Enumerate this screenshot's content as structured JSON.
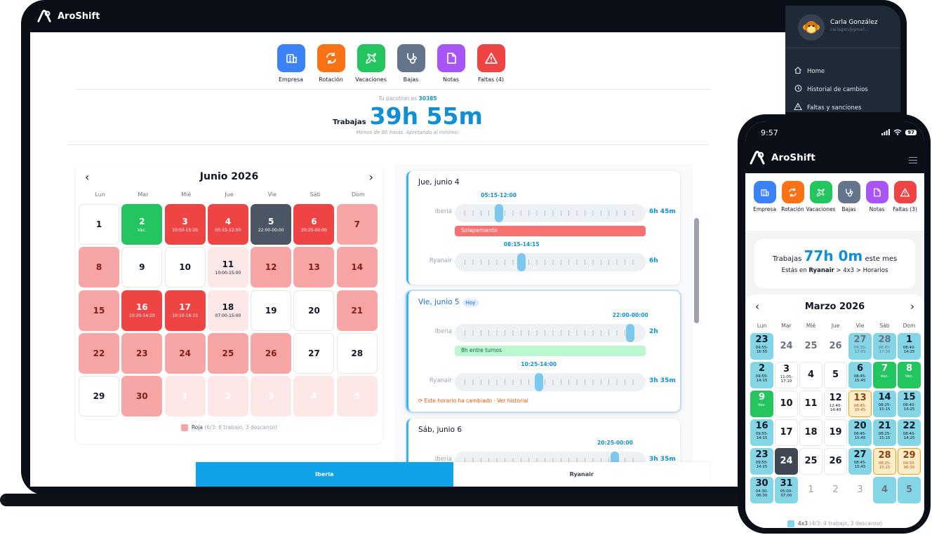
{
  "app": {
    "name": "AroShift"
  },
  "colors": {
    "blue": "#3b82f6",
    "orange": "#f97316",
    "green": "#22c55e",
    "slate": "#64748b",
    "purple": "#a855f7",
    "red": "#ef4444",
    "accent": "#0e8fd8"
  },
  "user": {
    "name": "Carla González",
    "email": "carlagon@gmail..."
  },
  "menu": {
    "items": [
      {
        "label": "Home",
        "icon": "home-icon"
      },
      {
        "label": "Historial de cambios",
        "icon": "history-icon"
      },
      {
        "label": "Faltas y sanciones",
        "icon": "warning-icon"
      }
    ]
  },
  "toolbar": {
    "items": [
      {
        "label": "Empresa",
        "icon": "building-icon",
        "color": "#3b82f6"
      },
      {
        "label": "Rotación",
        "icon": "rotate-icon",
        "color": "#f97316"
      },
      {
        "label": "Vacaciones",
        "icon": "plane-icon",
        "color": "#22c55e"
      },
      {
        "label": "Bajas",
        "icon": "stethoscope-icon",
        "color": "#64748b"
      },
      {
        "label": "Notas",
        "icon": "note-icon",
        "color": "#a855f7"
      },
      {
        "label": "Faltas (4)",
        "icon": "alert-icon",
        "color": "#ef4444"
      }
    ]
  },
  "summary": {
    "pacotron_text": "Tu pacotron es ",
    "pacotron_value": "30385",
    "worked_label": "Trabajas",
    "worked_hours": "39h 55m",
    "note": "Menos de 90 horas. Apretando al mínimo."
  },
  "calendar": {
    "title": "Junio 2026",
    "weekdays": [
      "Lun",
      "Mar",
      "Mié",
      "Jue",
      "Vie",
      "Sáb",
      "Dom"
    ],
    "days": [
      {
        "d": "1",
        "t": "w",
        "s": ""
      },
      {
        "d": "2",
        "t": "g",
        "s": "Vac."
      },
      {
        "d": "3",
        "t": "r",
        "s": "10:50-15:20"
      },
      {
        "d": "4",
        "t": "r",
        "s": "05:15-12:00"
      },
      {
        "d": "5",
        "t": "d",
        "s": "22:00-00:00"
      },
      {
        "d": "6",
        "t": "r",
        "s": "20:25-00:00"
      },
      {
        "d": "7",
        "t": "p",
        "s": ""
      },
      {
        "d": "8",
        "t": "p",
        "s": ""
      },
      {
        "d": "9",
        "t": "w",
        "s": ""
      },
      {
        "d": "10",
        "t": "w",
        "s": ""
      },
      {
        "d": "11",
        "t": "l",
        "s": "10:00-15:00"
      },
      {
        "d": "12",
        "t": "p",
        "s": ""
      },
      {
        "d": "13",
        "t": "p",
        "s": ""
      },
      {
        "d": "14",
        "t": "p",
        "s": ""
      },
      {
        "d": "15",
        "t": "p",
        "s": ""
      },
      {
        "d": "16",
        "t": "r",
        "s": "10:20-14:20"
      },
      {
        "d": "17",
        "t": "r",
        "s": "10:10-16:15"
      },
      {
        "d": "18",
        "t": "l",
        "s": "07:00-15:00"
      },
      {
        "d": "19",
        "t": "w",
        "s": ""
      },
      {
        "d": "20",
        "t": "w",
        "s": ""
      },
      {
        "d": "21",
        "t": "p",
        "s": ""
      },
      {
        "d": "22",
        "t": "p",
        "s": ""
      },
      {
        "d": "23",
        "t": "p",
        "s": ""
      },
      {
        "d": "24",
        "t": "p",
        "s": ""
      },
      {
        "d": "25",
        "t": "p",
        "s": ""
      },
      {
        "d": "26",
        "t": "p",
        "s": ""
      },
      {
        "d": "27",
        "t": "w",
        "s": ""
      },
      {
        "d": "28",
        "t": "w",
        "s": ""
      },
      {
        "d": "29",
        "t": "w",
        "s": ""
      },
      {
        "d": "30",
        "t": "p",
        "s": ""
      },
      {
        "d": "1",
        "t": "f",
        "s": ""
      },
      {
        "d": "2",
        "t": "f",
        "s": ""
      },
      {
        "d": "3",
        "t": "f",
        "s": ""
      },
      {
        "d": "4",
        "t": "f",
        "s": ""
      },
      {
        "d": "5",
        "t": "f",
        "s": ""
      }
    ],
    "legend": {
      "label": "Roja",
      "detail": "(6/3: 6 trabajo, 3 descanso)"
    }
  },
  "schedule": {
    "cards": [
      {
        "date": "Jue, junio 4",
        "today": "",
        "rows": [
          {
            "company": "Iberia",
            "time": "05:15-12:00",
            "total": "6h 45m",
            "pos": 0.23
          },
          {
            "company": "Ryanair",
            "time": "08:15-14:15",
            "total": "6h",
            "pos": 0.35
          }
        ],
        "note": "Solapamiento",
        "change": ""
      },
      {
        "date": "Vie, junio 5",
        "today": "Hoy",
        "rows": [
          {
            "company": "Iberia",
            "time": "22:00-00:00",
            "total": "2h",
            "pos": 0.92
          },
          {
            "company": "Ryanair",
            "time": "10:25-14:00",
            "total": "3h 35m",
            "pos": 0.44
          }
        ],
        "note": "8h entre turnos",
        "change": "Este horario ha cambiado · Ver historial"
      },
      {
        "date": "Sáb, junio 6",
        "today": "",
        "rows": [
          {
            "company": "Iberia",
            "time": "20:25-00:00",
            "total": "3h 35m",
            "pos": 0.84
          }
        ],
        "note": "",
        "change": ""
      }
    ]
  },
  "tabs": [
    {
      "label": "Iberia"
    },
    {
      "label": "Ryanair"
    }
  ],
  "phone": {
    "status": {
      "time": "9:57",
      "battery": "97"
    },
    "toolbar": [
      "Empresa",
      "Rotación",
      "Vacaciones",
      "Bajas",
      "Notas",
      "Faltas (3)"
    ],
    "summary": {
      "worked_label": "Trabajas",
      "worked_hours": "77h 0m",
      "suffix": "este mes",
      "path_prefix": "Estás en ",
      "path_company": "Ryanair",
      "path_rest": " > 4x3 > Horarios"
    },
    "calendar": {
      "title": "Marzo 2026",
      "weekdays": [
        "Lun",
        "Mar",
        "Mié",
        "Jue",
        "Vie",
        "Sáb",
        "Dom"
      ],
      "days": [
        {
          "d": "23",
          "t": "c",
          "s": "09:55-\n16:55"
        },
        {
          "d": "24",
          "t": "n",
          "s": ""
        },
        {
          "d": "25",
          "t": "n",
          "s": ""
        },
        {
          "d": "26",
          "t": "n",
          "s": ""
        },
        {
          "d": "27",
          "t": "cd",
          "s": "09:35-\n17:05"
        },
        {
          "d": "28",
          "t": "cd",
          "s": "08:45-\n17:30"
        },
        {
          "d": "1",
          "t": "c",
          "s": "08:40-\n14:25"
        },
        {
          "d": "2",
          "t": "c",
          "s": "09:55-\n14:15"
        },
        {
          "d": "3",
          "t": "w",
          "s": "11:05-\n17:10"
        },
        {
          "d": "4",
          "t": "w",
          "s": ""
        },
        {
          "d": "5",
          "t": "w",
          "s": ""
        },
        {
          "d": "6",
          "t": "c",
          "s": "08:45-\n15:45"
        },
        {
          "d": "7",
          "t": "g",
          "s": "Vac."
        },
        {
          "d": "8",
          "t": "g",
          "s": "Vac."
        },
        {
          "d": "9",
          "t": "g",
          "s": "Vac."
        },
        {
          "d": "10",
          "t": "w",
          "s": ""
        },
        {
          "d": "11",
          "t": "w",
          "s": ""
        },
        {
          "d": "12",
          "t": "w",
          "s": "12:40-\n14:40"
        },
        {
          "d": "13",
          "t": "y",
          "s": "08:45-\n15:45"
        },
        {
          "d": "14",
          "t": "c",
          "s": "08:25-\n15:15"
        },
        {
          "d": "15",
          "t": "c",
          "s": "08:40-\n14:25"
        },
        {
          "d": "16",
          "t": "c",
          "s": "09:55-\n14:15"
        },
        {
          "d": "17",
          "t": "w",
          "s": ""
        },
        {
          "d": "18",
          "t": "w",
          "s": ""
        },
        {
          "d": "19",
          "t": "w",
          "s": ""
        },
        {
          "d": "20",
          "t": "c",
          "s": "08:45-\n15:45"
        },
        {
          "d": "21",
          "t": "c",
          "s": "08:25-\n15:15"
        },
        {
          "d": "22",
          "t": "c",
          "s": "08:40-\n14:25"
        },
        {
          "d": "23",
          "t": "c",
          "s": "09:55-\n14:15"
        },
        {
          "d": "24",
          "t": "d",
          "s": ""
        },
        {
          "d": "25",
          "t": "w",
          "s": ""
        },
        {
          "d": "26",
          "t": "w",
          "s": ""
        },
        {
          "d": "27",
          "t": "c",
          "s": "08:45-\n15:45"
        },
        {
          "d": "28",
          "t": "y",
          "s": "08:25-\n15:15"
        },
        {
          "d": "29",
          "t": "y",
          "s": "04:30-\n06:30"
        },
        {
          "d": "30",
          "t": "c",
          "s": "04:30-\n06:30"
        },
        {
          "d": "31",
          "t": "c",
          "s": "05:00-\n07:00"
        },
        {
          "d": "1",
          "t": "x",
          "s": ""
        },
        {
          "d": "2",
          "t": "x",
          "s": ""
        },
        {
          "d": "3",
          "t": "x",
          "s": ""
        },
        {
          "d": "4",
          "t": "cd",
          "s": ""
        },
        {
          "d": "5",
          "t": "cd",
          "s": ""
        }
      ],
      "legend": {
        "label": "4x3",
        "detail": "(4/3: 4 trabajo, 3 descanso)"
      }
    }
  }
}
